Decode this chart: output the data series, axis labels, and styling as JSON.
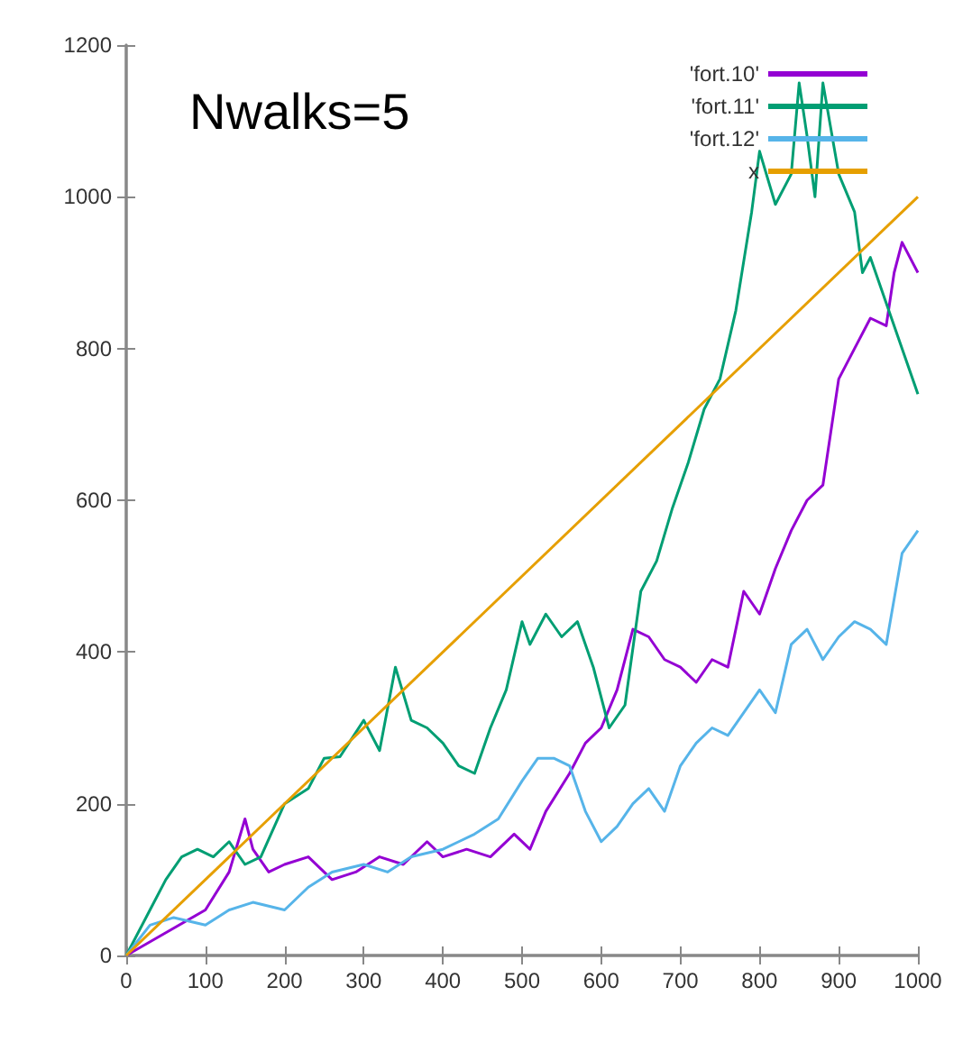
{
  "chart_data": {
    "type": "line",
    "annotations": [
      "Nwalks=5"
    ],
    "xlim": [
      0,
      1000
    ],
    "xticks": [
      0,
      100,
      200,
      300,
      400,
      500,
      600,
      700,
      800,
      900,
      1000
    ],
    "ylim": [
      0,
      1200
    ],
    "yticks": [
      0,
      200,
      400,
      600,
      800,
      1000,
      1200
    ],
    "grid": false,
    "legend": "top right",
    "marker": "none",
    "line_style": "solid",
    "series": [
      {
        "name": "'fort.10'",
        "color": "#9400d3",
        "x": [
          0,
          50,
          100,
          130,
          150,
          160,
          180,
          200,
          230,
          260,
          290,
          320,
          350,
          380,
          400,
          430,
          460,
          490,
          510,
          530,
          560,
          580,
          600,
          620,
          640,
          660,
          680,
          700,
          720,
          740,
          760,
          780,
          800,
          820,
          840,
          860,
          880,
          900,
          920,
          940,
          960,
          970,
          980,
          1000
        ],
        "values": [
          0,
          30,
          60,
          110,
          180,
          140,
          110,
          120,
          130,
          100,
          110,
          130,
          120,
          150,
          130,
          140,
          130,
          160,
          140,
          190,
          240,
          280,
          300,
          350,
          430,
          420,
          390,
          380,
          360,
          390,
          380,
          480,
          450,
          510,
          560,
          600,
          620,
          760,
          800,
          840,
          830,
          900,
          940,
          900
        ]
      },
      {
        "name": "'fort.11'",
        "color": "#009e73",
        "x": [
          0,
          30,
          50,
          70,
          90,
          110,
          130,
          150,
          170,
          200,
          230,
          250,
          270,
          300,
          320,
          340,
          360,
          380,
          400,
          420,
          440,
          460,
          480,
          500,
          510,
          530,
          550,
          570,
          590,
          610,
          630,
          650,
          670,
          690,
          710,
          730,
          750,
          770,
          790,
          800,
          820,
          840,
          850,
          860,
          870,
          880,
          900,
          920,
          930,
          940,
          960,
          980,
          1000
        ],
        "values": [
          0,
          60,
          100,
          130,
          140,
          130,
          150,
          120,
          130,
          200,
          220,
          260,
          262,
          310,
          270,
          380,
          310,
          300,
          280,
          250,
          240,
          300,
          350,
          440,
          410,
          450,
          420,
          440,
          380,
          300,
          330,
          480,
          520,
          590,
          650,
          720,
          760,
          850,
          980,
          1060,
          990,
          1030,
          1150,
          1080,
          1000,
          1150,
          1030,
          980,
          900,
          920,
          860,
          800,
          740
        ]
      },
      {
        "name": "'fort.12'",
        "color": "#56b4e9",
        "x": [
          0,
          30,
          60,
          100,
          130,
          160,
          200,
          230,
          260,
          300,
          330,
          360,
          400,
          420,
          440,
          470,
          500,
          520,
          540,
          560,
          580,
          600,
          620,
          640,
          660,
          680,
          700,
          720,
          740,
          760,
          780,
          800,
          820,
          840,
          860,
          880,
          900,
          920,
          940,
          960,
          980,
          1000
        ],
        "values": [
          0,
          40,
          50,
          40,
          60,
          70,
          60,
          90,
          110,
          120,
          110,
          130,
          140,
          150,
          160,
          180,
          230,
          260,
          260,
          250,
          190,
          150,
          170,
          200,
          220,
          190,
          250,
          280,
          300,
          290,
          320,
          350,
          320,
          410,
          430,
          390,
          420,
          440,
          430,
          410,
          530,
          560
        ]
      },
      {
        "name": "x",
        "color": "#e69f00",
        "x": [
          0,
          1000
        ],
        "values": [
          0,
          1000
        ]
      }
    ]
  }
}
